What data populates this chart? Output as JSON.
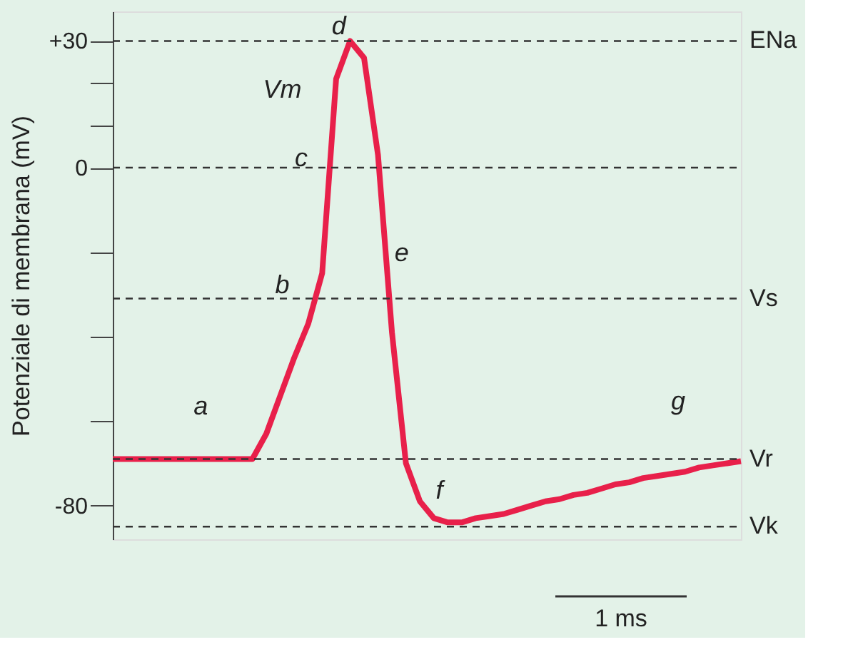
{
  "chart_data": {
    "type": "line",
    "ylabel": "Potenziale di membrana (mV)",
    "categories": [
      null,
      null,
      null,
      null,
      null,
      null,
      null,
      null,
      null,
      null,
      null,
      null,
      null,
      null,
      null,
      null,
      null,
      null,
      null,
      null,
      null,
      null,
      null,
      null,
      null,
      null,
      null,
      null,
      null,
      null,
      null,
      null,
      null,
      null,
      null,
      null,
      null,
      null,
      null,
      null,
      null,
      null,
      null,
      null,
      null,
      null
    ],
    "series": [
      {
        "color": "#e8204a",
        "values": [
          -69,
          -69,
          -69,
          -69,
          -69,
          -69,
          -69,
          -69,
          -69,
          -69,
          -69,
          -63,
          -54,
          -45,
          -37,
          -25,
          21,
          30,
          26,
          3,
          -39,
          -70,
          -79,
          -83,
          -84,
          -84,
          -83,
          -82.5,
          -82,
          -81,
          -80,
          -79,
          -78.5,
          -77.5,
          -77,
          -76,
          -75,
          -74.5,
          -73.5,
          -73,
          -72.5,
          -72,
          -71,
          -70.5,
          -70,
          -69.5
        ]
      }
    ],
    "ylim": [
      -88,
      37
    ],
    "yticks": [
      {
        "value": 30,
        "label": "+30"
      },
      {
        "value": 20,
        "label": null
      },
      {
        "value": 10,
        "label": null
      },
      0,
      {
        "value": -20,
        "label": null
      },
      {
        "value": -40,
        "label": null
      },
      {
        "value": -60,
        "label": null
      },
      -80
    ],
    "tick_labels": "y",
    "grid": false,
    "marker": "none",
    "line_style": "solid",
    "ref_lines": [
      {
        "axis": "y",
        "value": 30,
        "label": "ENa",
        "line_style": "dashed",
        "color": "#333333"
      },
      {
        "axis": "y",
        "value": 0,
        "label": null,
        "line_style": "dashed",
        "color": "#333333"
      },
      {
        "axis": "y",
        "value": -31,
        "label": "Vs",
        "line_style": "dashed",
        "color": "#333333"
      },
      {
        "axis": "y",
        "value": -69,
        "label": "Vr",
        "line_style": "dashed",
        "color": "#333333"
      },
      {
        "axis": "y",
        "value": -85,
        "label": "Vk",
        "line_style": "dashed",
        "color": "#333333"
      }
    ],
    "annotations": [
      "a",
      "b",
      "c",
      "d",
      "Vm",
      "e",
      "f",
      "g",
      "1 ms"
    ]
  }
}
